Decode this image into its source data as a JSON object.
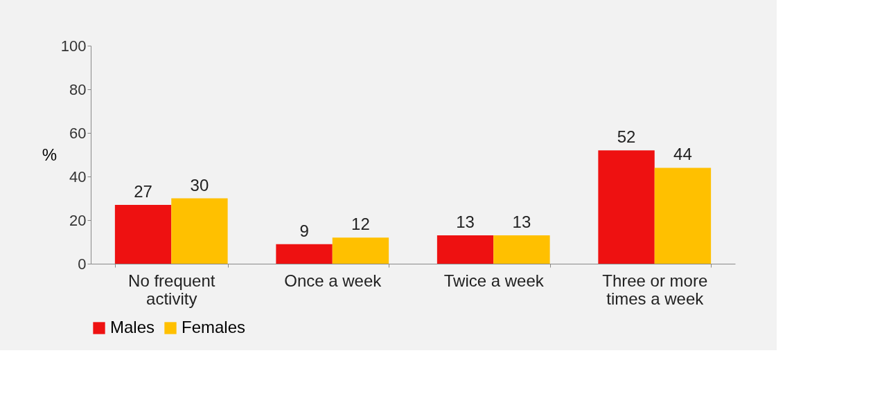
{
  "chart_data": {
    "type": "bar",
    "ylabel": "%",
    "categories": [
      "No frequent activity",
      "Once a week",
      "Twice a week",
      "Three or more times a week"
    ],
    "series": [
      {
        "name": "Males",
        "color": "#ee1111",
        "values": [
          27,
          9,
          13,
          52
        ]
      },
      {
        "name": "Females",
        "color": "#ffc000",
        "values": [
          30,
          12,
          13,
          44
        ]
      }
    ],
    "ylim": [
      0,
      100
    ],
    "yticks": [
      0,
      20,
      40,
      60,
      80,
      100
    ],
    "grid": false,
    "legend": "bottom",
    "data_labels": true
  }
}
